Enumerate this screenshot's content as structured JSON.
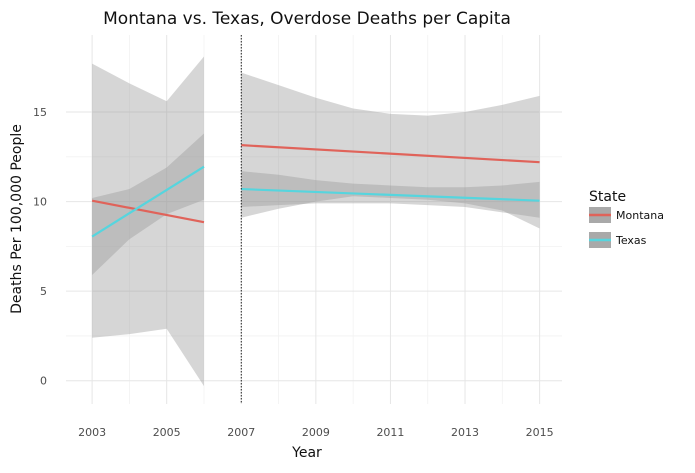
{
  "chart_data": {
    "type": "line",
    "title": "Montana vs. Texas, Overdose Deaths per Capita",
    "xlabel": "Year",
    "ylabel": "Deaths Per 100,000 People",
    "xlim": [
      2002.3,
      2015.6
    ],
    "ylim": [
      -1.3,
      19.3
    ],
    "x_ticks": [
      2003,
      2005,
      2007,
      2009,
      2011,
      2013,
      2015
    ],
    "y_ticks": [
      0,
      5,
      10,
      15
    ],
    "vline": 2007,
    "legend": {
      "title": "State",
      "position": "right"
    },
    "grid": true,
    "series": [
      {
        "name": "Montana",
        "color": "#e0635a",
        "segments": [
          {
            "x": [
              2003,
              2006
            ],
            "y": [
              10.05,
              8.85
            ],
            "ci_x": [
              2003,
              2004,
              2005,
              2006
            ],
            "ci_low": [
              2.4,
              2.6,
              2.9,
              -0.3
            ],
            "ci_high": [
              17.7,
              16.6,
              15.6,
              18.1
            ]
          },
          {
            "x": [
              2007,
              2015
            ],
            "y": [
              13.15,
              12.2
            ],
            "ci_x": [
              2007,
              2008,
              2009,
              2010,
              2011,
              2012,
              2013,
              2014,
              2015
            ],
            "ci_low": [
              9.1,
              9.6,
              10.0,
              10.3,
              10.2,
              10.1,
              9.9,
              9.5,
              8.5
            ],
            "ci_high": [
              17.2,
              16.5,
              15.8,
              15.2,
              14.9,
              14.8,
              15.0,
              15.4,
              15.9
            ]
          }
        ]
      },
      {
        "name": "Texas",
        "color": "#56d5de",
        "segments": [
          {
            "x": [
              2003,
              2006
            ],
            "y": [
              8.05,
              11.95
            ],
            "ci_x": [
              2003,
              2004,
              2005,
              2006
            ],
            "ci_low": [
              5.9,
              7.9,
              9.3,
              10.1
            ],
            "ci_high": [
              10.2,
              10.7,
              11.9,
              13.8
            ]
          },
          {
            "x": [
              2007,
              2015
            ],
            "y": [
              10.7,
              10.05
            ],
            "ci_x": [
              2007,
              2008,
              2009,
              2010,
              2011,
              2012,
              2013,
              2014,
              2015
            ],
            "ci_low": [
              9.7,
              9.8,
              9.9,
              9.9,
              9.9,
              9.8,
              9.7,
              9.4,
              9.1
            ],
            "ci_high": [
              11.7,
              11.5,
              11.2,
              11.0,
              10.9,
              10.8,
              10.8,
              10.9,
              11.1
            ]
          }
        ]
      }
    ]
  }
}
